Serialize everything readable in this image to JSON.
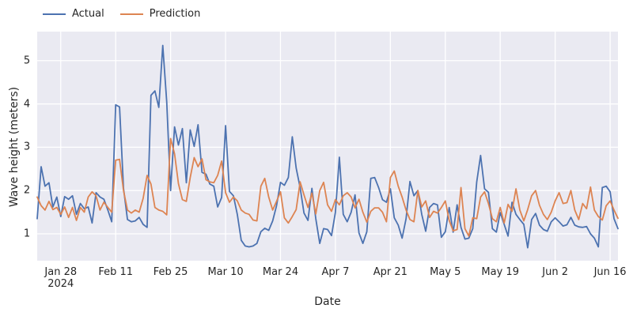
{
  "legend": {
    "items": [
      {
        "label": "Actual",
        "color": "#4c72b0"
      },
      {
        "label": "Prediction",
        "color": "#dd8452"
      }
    ]
  },
  "axes": {
    "x_title": "Date",
    "y_title": "Wave height (meters)",
    "year_offset_label": "2024"
  },
  "chart_data": {
    "type": "line",
    "title": "",
    "xlabel": "Date",
    "ylabel": "Wave height (meters)",
    "x_unit": "daily points, index 0 .. 148",
    "point_count": 149,
    "ylim": [
      0.38,
      5.67
    ],
    "y_ticks": [
      1,
      2,
      3,
      4,
      5
    ],
    "x_ticks": [
      {
        "pos": 6,
        "label": "Jan 28",
        "sub": "2024"
      },
      {
        "pos": 20,
        "label": "Feb 11"
      },
      {
        "pos": 34,
        "label": "Feb 25"
      },
      {
        "pos": 48,
        "label": "Mar 10"
      },
      {
        "pos": 62,
        "label": "Mar 24"
      },
      {
        "pos": 76,
        "label": "Apr 7"
      },
      {
        "pos": 90,
        "label": "Apr 21"
      },
      {
        "pos": 104,
        "label": "May 5"
      },
      {
        "pos": 118,
        "label": "May 19"
      },
      {
        "pos": 132,
        "label": "Jun 2"
      },
      {
        "pos": 146,
        "label": "Jun 16"
      }
    ],
    "background": "#eaeaf2",
    "grid_color": "#ffffff",
    "legend_position": "top-left-horizontal",
    "series": [
      {
        "name": "Actual",
        "color": "#4c72b0",
        "values": [
          1.35,
          2.55,
          2.1,
          2.18,
          1.62,
          1.85,
          1.4,
          1.86,
          1.8,
          1.88,
          1.45,
          1.7,
          1.58,
          1.62,
          1.25,
          1.95,
          1.85,
          1.8,
          1.55,
          1.28,
          3.98,
          3.93,
          2.05,
          1.33,
          1.28,
          1.3,
          1.38,
          1.22,
          1.15,
          4.2,
          4.3,
          3.92,
          5.35,
          4.05,
          2.0,
          3.47,
          3.05,
          3.43,
          2.18,
          3.4,
          3.02,
          3.52,
          2.42,
          2.38,
          2.15,
          2.1,
          1.62,
          1.84,
          3.5,
          1.98,
          1.88,
          1.45,
          0.85,
          0.72,
          0.7,
          0.72,
          0.78,
          1.05,
          1.13,
          1.08,
          1.3,
          1.65,
          2.19,
          2.12,
          2.3,
          3.24,
          2.52,
          2.07,
          1.48,
          1.31,
          2.05,
          1.35,
          0.78,
          1.12,
          1.1,
          0.96,
          1.5,
          2.77,
          1.45,
          1.28,
          1.5,
          1.9,
          1.02,
          0.78,
          1.05,
          2.28,
          2.3,
          2.07,
          1.79,
          1.73,
          2.04,
          1.37,
          1.2,
          0.9,
          1.35,
          2.21,
          1.88,
          2.0,
          1.45,
          1.06,
          1.61,
          1.7,
          1.67,
          0.92,
          1.05,
          1.61,
          1.04,
          1.67,
          1.15,
          0.88,
          0.9,
          1.12,
          2.2,
          2.81,
          2.04,
          1.96,
          1.12,
          1.04,
          1.49,
          1.22,
          0.95,
          1.73,
          1.45,
          1.33,
          1.22,
          0.68,
          1.33,
          1.47,
          1.2,
          1.1,
          1.06,
          1.28,
          1.37,
          1.28,
          1.18,
          1.21,
          1.38,
          1.2,
          1.16,
          1.15,
          1.17,
          1.0,
          0.9,
          0.7,
          2.07,
          2.1,
          1.97,
          1.35,
          1.12
        ]
      },
      {
        "name": "Prediction",
        "color": "#dd8452",
        "values": [
          1.85,
          1.65,
          1.55,
          1.75,
          1.56,
          1.61,
          1.45,
          1.62,
          1.38,
          1.61,
          1.31,
          1.61,
          1.5,
          1.85,
          1.97,
          1.88,
          1.55,
          1.73,
          1.61,
          1.5,
          2.7,
          2.72,
          2.0,
          1.55,
          1.48,
          1.55,
          1.5,
          1.82,
          2.35,
          2.15,
          1.61,
          1.55,
          1.52,
          1.44,
          3.2,
          2.85,
          2.16,
          1.79,
          1.75,
          2.3,
          2.76,
          2.55,
          2.73,
          2.25,
          2.2,
          2.18,
          2.35,
          2.68,
          1.95,
          1.73,
          1.85,
          1.76,
          1.55,
          1.48,
          1.45,
          1.32,
          1.3,
          2.1,
          2.28,
          1.85,
          1.55,
          1.75,
          1.97,
          1.37,
          1.25,
          1.4,
          1.56,
          2.2,
          1.9,
          1.61,
          1.94,
          1.46,
          2.0,
          2.19,
          1.67,
          1.52,
          1.79,
          1.67,
          1.88,
          1.95,
          1.85,
          1.6,
          1.8,
          1.5,
          1.27,
          1.52,
          1.6,
          1.6,
          1.5,
          1.28,
          2.3,
          2.45,
          2.1,
          1.85,
          1.55,
          1.33,
          1.28,
          2.0,
          1.62,
          1.76,
          1.38,
          1.52,
          1.48,
          1.61,
          1.76,
          1.31,
          1.07,
          1.1,
          2.07,
          1.12,
          0.95,
          1.37,
          1.35,
          1.85,
          1.97,
          1.7,
          1.35,
          1.28,
          1.61,
          1.25,
          1.68,
          1.52,
          2.04,
          1.55,
          1.3,
          1.56,
          1.88,
          2.0,
          1.66,
          1.45,
          1.33,
          1.5,
          1.76,
          1.95,
          1.7,
          1.72,
          2.0,
          1.55,
          1.33,
          1.7,
          1.58,
          2.08,
          1.55,
          1.4,
          1.32,
          1.65,
          1.76,
          1.55,
          1.36
        ]
      }
    ]
  }
}
